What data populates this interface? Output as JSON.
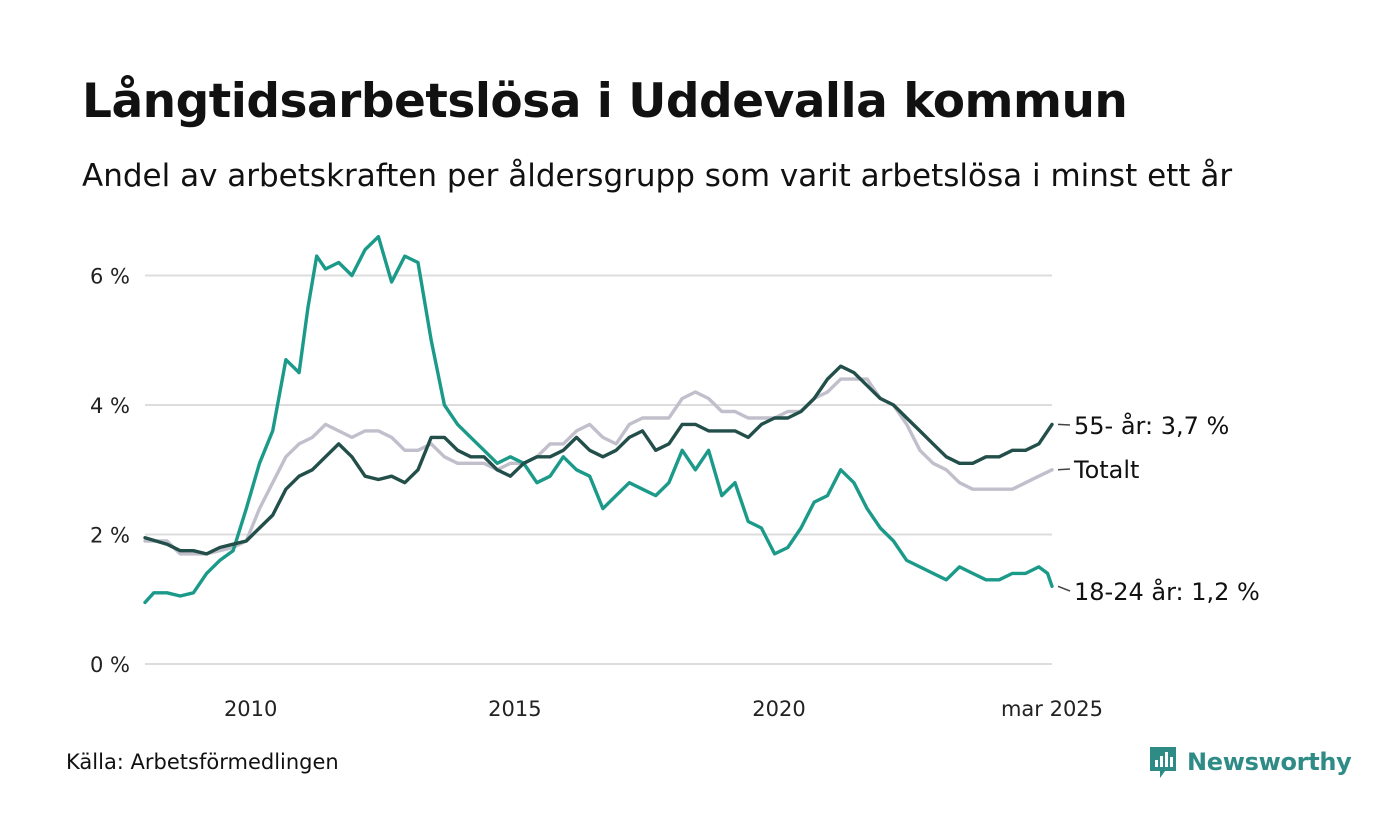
{
  "title": "Långtidsarbetslösa i Uddevalla kommun",
  "subtitle": "Andel av arbetskraften per åldersgrupp som varit arbetslösa i minst ett år",
  "source": "Källa: Arbetsförmedlingen",
  "brand": "Newsworthy",
  "colors": {
    "young": "#1b9a8a",
    "old": "#234f4a",
    "total": "#c2bfcc",
    "grid": "#dddddd",
    "brand": "#2f8b86"
  },
  "chart_data": {
    "type": "line",
    "x_start": "2008-01",
    "x_end": "2025-03",
    "ylim": [
      0,
      6.8
    ],
    "y_ticks": [
      0,
      2,
      4,
      6
    ],
    "y_tick_labels": [
      "0 %",
      "2 %",
      "4 %",
      "6 %"
    ],
    "x_ticks": [
      "2010-01",
      "2015-01",
      "2020-01",
      "2025-03"
    ],
    "x_tick_labels": [
      "2010",
      "2015",
      "2020",
      "mar 2025"
    ],
    "grid": true,
    "series": [
      {
        "key": "total",
        "name": "Totalt",
        "end_label": "Totalt",
        "points": [
          [
            "2008-01",
            1.9
          ],
          [
            "2008-06",
            1.9
          ],
          [
            "2008-09",
            1.7
          ],
          [
            "2009-03",
            1.7
          ],
          [
            "2009-09",
            1.8
          ],
          [
            "2009-12",
            1.9
          ],
          [
            "2010-03",
            2.4
          ],
          [
            "2010-06",
            2.8
          ],
          [
            "2010-09",
            3.2
          ],
          [
            "2010-12",
            3.4
          ],
          [
            "2011-03",
            3.5
          ],
          [
            "2011-06",
            3.7
          ],
          [
            "2011-09",
            3.6
          ],
          [
            "2011-12",
            3.5
          ],
          [
            "2012-03",
            3.6
          ],
          [
            "2012-06",
            3.6
          ],
          [
            "2012-09",
            3.5
          ],
          [
            "2012-12",
            3.3
          ],
          [
            "2013-03",
            3.3
          ],
          [
            "2013-06",
            3.4
          ],
          [
            "2013-09",
            3.2
          ],
          [
            "2013-12",
            3.1
          ],
          [
            "2014-06",
            3.1
          ],
          [
            "2014-09",
            3.0
          ],
          [
            "2014-12",
            3.1
          ],
          [
            "2015-03",
            3.1
          ],
          [
            "2015-06",
            3.2
          ],
          [
            "2015-09",
            3.4
          ],
          [
            "2015-12",
            3.4
          ],
          [
            "2016-03",
            3.6
          ],
          [
            "2016-06",
            3.7
          ],
          [
            "2016-09",
            3.5
          ],
          [
            "2016-12",
            3.4
          ],
          [
            "2017-03",
            3.7
          ],
          [
            "2017-06",
            3.8
          ],
          [
            "2017-09",
            3.8
          ],
          [
            "2017-12",
            3.8
          ],
          [
            "2018-03",
            4.1
          ],
          [
            "2018-06",
            4.2
          ],
          [
            "2018-09",
            4.1
          ],
          [
            "2018-12",
            3.9
          ],
          [
            "2019-03",
            3.9
          ],
          [
            "2019-06",
            3.8
          ],
          [
            "2019-09",
            3.8
          ],
          [
            "2019-12",
            3.8
          ],
          [
            "2020-03",
            3.9
          ],
          [
            "2020-06",
            3.9
          ],
          [
            "2020-09",
            4.1
          ],
          [
            "2020-12",
            4.2
          ],
          [
            "2021-03",
            4.4
          ],
          [
            "2021-06",
            4.4
          ],
          [
            "2021-09",
            4.4
          ],
          [
            "2021-12",
            4.1
          ],
          [
            "2022-03",
            4.0
          ],
          [
            "2022-06",
            3.7
          ],
          [
            "2022-09",
            3.3
          ],
          [
            "2022-12",
            3.1
          ],
          [
            "2023-03",
            3.0
          ],
          [
            "2023-06",
            2.8
          ],
          [
            "2023-09",
            2.7
          ],
          [
            "2023-12",
            2.7
          ],
          [
            "2024-03",
            2.7
          ],
          [
            "2024-06",
            2.7
          ],
          [
            "2024-09",
            2.8
          ],
          [
            "2024-12",
            2.9
          ],
          [
            "2025-03",
            3.0
          ]
        ]
      },
      {
        "key": "young",
        "name": "18-24 år",
        "end_label": "18-24 år: 1,2 %",
        "points": [
          [
            "2008-01",
            0.95
          ],
          [
            "2008-03",
            1.1
          ],
          [
            "2008-06",
            1.1
          ],
          [
            "2008-09",
            1.05
          ],
          [
            "2008-12",
            1.1
          ],
          [
            "2009-03",
            1.4
          ],
          [
            "2009-06",
            1.6
          ],
          [
            "2009-09",
            1.75
          ],
          [
            "2009-12",
            2.4
          ],
          [
            "2010-03",
            3.1
          ],
          [
            "2010-06",
            3.6
          ],
          [
            "2010-09",
            4.7
          ],
          [
            "2010-12",
            4.5
          ],
          [
            "2011-02",
            5.5
          ],
          [
            "2011-04",
            6.3
          ],
          [
            "2011-06",
            6.1
          ],
          [
            "2011-09",
            6.2
          ],
          [
            "2011-12",
            6.0
          ],
          [
            "2012-03",
            6.4
          ],
          [
            "2012-06",
            6.6
          ],
          [
            "2012-09",
            5.9
          ],
          [
            "2012-12",
            6.3
          ],
          [
            "2013-03",
            6.2
          ],
          [
            "2013-06",
            5.0
          ],
          [
            "2013-09",
            4.0
          ],
          [
            "2013-12",
            3.7
          ],
          [
            "2014-03",
            3.5
          ],
          [
            "2014-06",
            3.3
          ],
          [
            "2014-09",
            3.1
          ],
          [
            "2014-12",
            3.2
          ],
          [
            "2015-03",
            3.1
          ],
          [
            "2015-06",
            2.8
          ],
          [
            "2015-09",
            2.9
          ],
          [
            "2015-12",
            3.2
          ],
          [
            "2016-03",
            3.0
          ],
          [
            "2016-06",
            2.9
          ],
          [
            "2016-09",
            2.4
          ],
          [
            "2016-12",
            2.6
          ],
          [
            "2017-03",
            2.8
          ],
          [
            "2017-06",
            2.7
          ],
          [
            "2017-09",
            2.6
          ],
          [
            "2017-12",
            2.8
          ],
          [
            "2018-03",
            3.3
          ],
          [
            "2018-06",
            3.0
          ],
          [
            "2018-09",
            3.3
          ],
          [
            "2018-12",
            2.6
          ],
          [
            "2019-03",
            2.8
          ],
          [
            "2019-06",
            2.2
          ],
          [
            "2019-09",
            2.1
          ],
          [
            "2019-12",
            1.7
          ],
          [
            "2020-03",
            1.8
          ],
          [
            "2020-06",
            2.1
          ],
          [
            "2020-09",
            2.5
          ],
          [
            "2020-12",
            2.6
          ],
          [
            "2021-03",
            3.0
          ],
          [
            "2021-06",
            2.8
          ],
          [
            "2021-09",
            2.4
          ],
          [
            "2021-12",
            2.1
          ],
          [
            "2022-03",
            1.9
          ],
          [
            "2022-06",
            1.6
          ],
          [
            "2022-09",
            1.5
          ],
          [
            "2022-12",
            1.4
          ],
          [
            "2023-03",
            1.3
          ],
          [
            "2023-06",
            1.5
          ],
          [
            "2023-09",
            1.4
          ],
          [
            "2023-12",
            1.3
          ],
          [
            "2024-03",
            1.3
          ],
          [
            "2024-06",
            1.4
          ],
          [
            "2024-09",
            1.4
          ],
          [
            "2024-12",
            1.5
          ],
          [
            "2025-02",
            1.4
          ],
          [
            "2025-03",
            1.2
          ]
        ]
      },
      {
        "key": "old",
        "name": "55- år",
        "end_label": "55- år: 3,7 %",
        "points": [
          [
            "2008-01",
            1.95
          ],
          [
            "2008-06",
            1.85
          ],
          [
            "2008-09",
            1.75
          ],
          [
            "2008-12",
            1.75
          ],
          [
            "2009-03",
            1.7
          ],
          [
            "2009-06",
            1.8
          ],
          [
            "2009-09",
            1.85
          ],
          [
            "2009-12",
            1.9
          ],
          [
            "2010-03",
            2.1
          ],
          [
            "2010-06",
            2.3
          ],
          [
            "2010-09",
            2.7
          ],
          [
            "2010-12",
            2.9
          ],
          [
            "2011-03",
            3.0
          ],
          [
            "2011-06",
            3.2
          ],
          [
            "2011-09",
            3.4
          ],
          [
            "2011-12",
            3.2
          ],
          [
            "2012-03",
            2.9
          ],
          [
            "2012-06",
            2.85
          ],
          [
            "2012-09",
            2.9
          ],
          [
            "2012-12",
            2.8
          ],
          [
            "2013-03",
            3.0
          ],
          [
            "2013-06",
            3.5
          ],
          [
            "2013-09",
            3.5
          ],
          [
            "2013-12",
            3.3
          ],
          [
            "2014-03",
            3.2
          ],
          [
            "2014-06",
            3.2
          ],
          [
            "2014-09",
            3.0
          ],
          [
            "2014-12",
            2.9
          ],
          [
            "2015-03",
            3.1
          ],
          [
            "2015-06",
            3.2
          ],
          [
            "2015-09",
            3.2
          ],
          [
            "2015-12",
            3.3
          ],
          [
            "2016-03",
            3.5
          ],
          [
            "2016-06",
            3.3
          ],
          [
            "2016-09",
            3.2
          ],
          [
            "2016-12",
            3.3
          ],
          [
            "2017-03",
            3.5
          ],
          [
            "2017-06",
            3.6
          ],
          [
            "2017-09",
            3.3
          ],
          [
            "2017-12",
            3.4
          ],
          [
            "2018-03",
            3.7
          ],
          [
            "2018-06",
            3.7
          ],
          [
            "2018-09",
            3.6
          ],
          [
            "2018-12",
            3.6
          ],
          [
            "2019-03",
            3.6
          ],
          [
            "2019-06",
            3.5
          ],
          [
            "2019-09",
            3.7
          ],
          [
            "2019-12",
            3.8
          ],
          [
            "2020-03",
            3.8
          ],
          [
            "2020-06",
            3.9
          ],
          [
            "2020-09",
            4.1
          ],
          [
            "2020-12",
            4.4
          ],
          [
            "2021-03",
            4.6
          ],
          [
            "2021-06",
            4.5
          ],
          [
            "2021-09",
            4.3
          ],
          [
            "2021-12",
            4.1
          ],
          [
            "2022-03",
            4.0
          ],
          [
            "2022-06",
            3.8
          ],
          [
            "2022-09",
            3.6
          ],
          [
            "2022-12",
            3.4
          ],
          [
            "2023-03",
            3.2
          ],
          [
            "2023-06",
            3.1
          ],
          [
            "2023-09",
            3.1
          ],
          [
            "2023-12",
            3.2
          ],
          [
            "2024-03",
            3.2
          ],
          [
            "2024-06",
            3.3
          ],
          [
            "2024-09",
            3.3
          ],
          [
            "2024-12",
            3.4
          ],
          [
            "2025-03",
            3.7
          ]
        ]
      }
    ]
  }
}
